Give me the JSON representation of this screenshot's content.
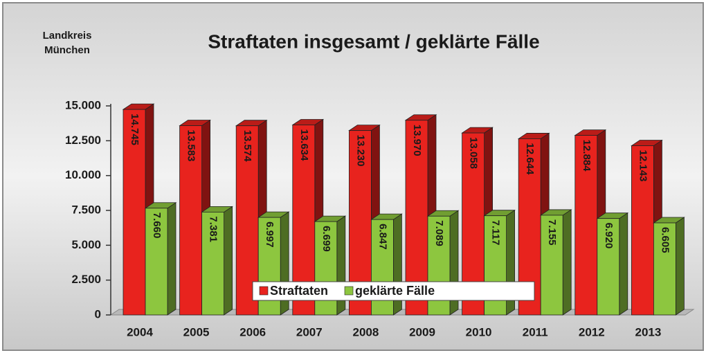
{
  "chart_data": {
    "type": "bar3d",
    "title": "Straftaten insgesamt / geklärte Fälle",
    "corner_label": [
      "Landkreis",
      "München"
    ],
    "categories": [
      "2004",
      "2005",
      "2006",
      "2007",
      "2008",
      "2009",
      "2010",
      "2011",
      "2012",
      "2013"
    ],
    "series": [
      {
        "name": "Straftaten",
        "color": "#e8231e",
        "values": [
          14745,
          13583,
          13574,
          13634,
          13230,
          13970,
          13058,
          12644,
          12884,
          12143
        ],
        "value_labels": [
          "14.745",
          "13.583",
          "13.574",
          "13.634",
          "13.230",
          "13.970",
          "13.058",
          "12.644",
          "12.884",
          "12.143"
        ]
      },
      {
        "name": "geklärte Fälle",
        "color": "#8dc63f",
        "values": [
          7660,
          7381,
          6997,
          6699,
          6847,
          7089,
          7117,
          7155,
          6920,
          6605
        ],
        "value_labels": [
          "7.660",
          "7.381",
          "6.997",
          "6.699",
          "6.847",
          "7.089",
          "7.117",
          "7.155",
          "6.920",
          "6.605"
        ]
      }
    ],
    "ylim": [
      0,
      15000
    ],
    "yticks": [
      0,
      {
        "value": 2500,
        "label": "2.500"
      },
      {
        "value": 5000,
        "label": "5.000"
      },
      {
        "value": 7500,
        "label": "7.500"
      },
      {
        "value": 10000,
        "label": "10.000"
      },
      {
        "value": 12500,
        "label": "12.500"
      },
      {
        "value": 15000,
        "label": "15.000"
      }
    ],
    "legend": "bottom"
  }
}
